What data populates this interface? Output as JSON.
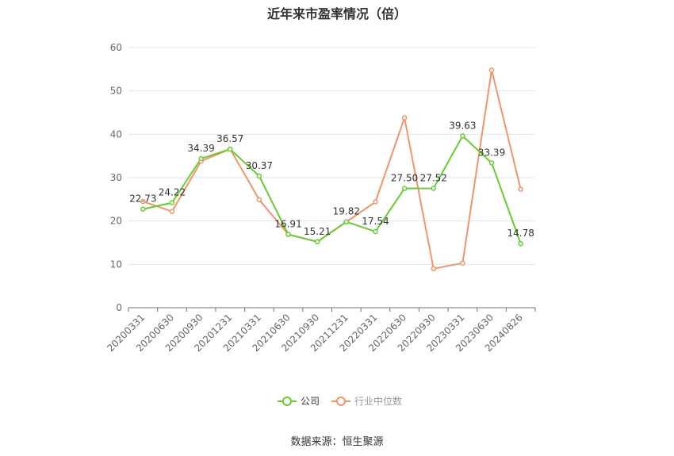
{
  "chart_data": {
    "type": "line",
    "title": "近年来市盈率情况（倍）",
    "source": "数据来源：恒生聚源",
    "categories": [
      "20200331",
      "20200630",
      "20200930",
      "20201231",
      "20210331",
      "20210630",
      "20210930",
      "20211231",
      "20220331",
      "20220630",
      "20220930",
      "20230331",
      "20230630",
      "20240826"
    ],
    "ylim": [
      0,
      60
    ],
    "yticks": [
      0,
      10,
      20,
      30,
      40,
      50,
      60
    ],
    "grid": true,
    "legend_position": "bottom",
    "series": [
      {
        "name": "公司",
        "color": "#66cc33",
        "values": [
          22.73,
          24.22,
          34.39,
          36.57,
          30.37,
          16.91,
          15.21,
          19.82,
          17.54,
          27.5,
          27.52,
          39.63,
          33.39,
          14.78
        ],
        "labels": [
          "22.73",
          "24.22",
          "34.39",
          "36.57",
          "30.37",
          "16.91",
          "15.21",
          "19.82",
          "17.54",
          "27.50",
          "27.52",
          "39.63",
          "33.39",
          "14.78"
        ]
      },
      {
        "name": "行业中位数",
        "color": "#f0956a",
        "values": [
          24.5,
          22.2,
          33.8,
          36.6,
          24.9,
          16.9,
          15.2,
          19.8,
          24.4,
          43.8,
          9.0,
          10.3,
          54.8,
          27.3
        ]
      }
    ]
  }
}
